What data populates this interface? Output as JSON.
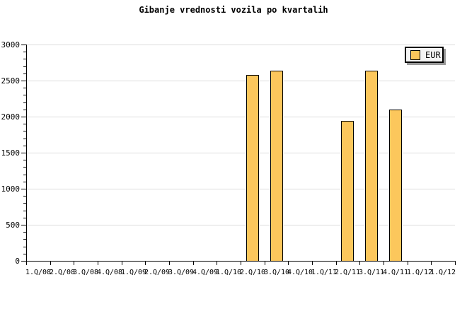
{
  "title": "Gibanje vrednosti vozila po kvartalih",
  "legend": {
    "label": "EUR"
  },
  "colors": {
    "background": "#FFFFFF",
    "bar_fill": "#FCC75C",
    "bar_border": "#000000",
    "grid": "#DCDCDC",
    "axis": "#000000",
    "legend_bg": "#F4F4F4",
    "legend_shadow": "#999999",
    "text": "#000000"
  },
  "chart_data": {
    "type": "bar",
    "title": "Gibanje vrednosti vozila po kvartalih",
    "categories": [
      "1.Q/08",
      "2.Q/08",
      "3.Q/08",
      "4.Q/08",
      "1.Q/09",
      "2.Q/09",
      "3.Q/09",
      "4.Q/09",
      "1.Q/10",
      "2.Q/10",
      "3.Q/10",
      "4.Q/10",
      "1.Q/11",
      "2.Q/11",
      "3.Q/11",
      "4.Q/11",
      "1.Q/12",
      "1.Q/12"
    ],
    "series": [
      {
        "name": "EUR",
        "values": [
          null,
          null,
          null,
          null,
          null,
          null,
          null,
          null,
          null,
          2580,
          2635,
          null,
          null,
          1940,
          2635,
          2100,
          null,
          null
        ]
      }
    ],
    "xlabel": "",
    "ylabel": "",
    "ylim": [
      0,
      3000
    ],
    "ytick_major": 500,
    "ytick_minor": 100,
    "grid": "horizontal-major",
    "legend_position": "top-right"
  }
}
